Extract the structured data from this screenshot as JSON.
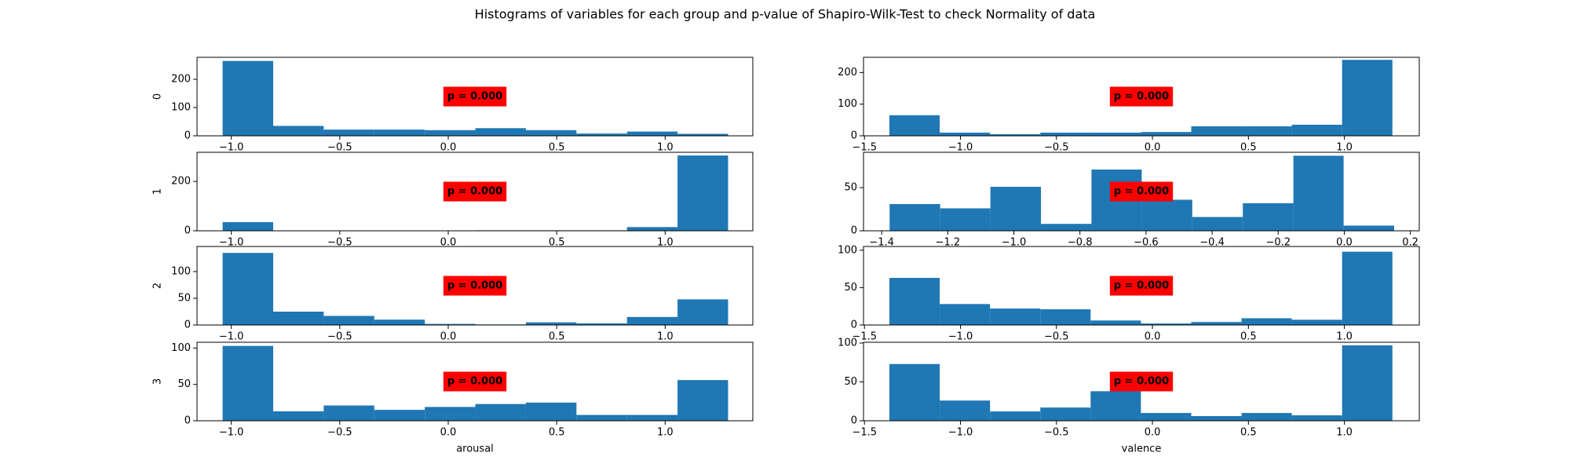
{
  "title": "Histograms of variables for each group and p-value of Shapiro-Wilk-Test to check Normality of data",
  "chart_data": [
    {
      "type": "histogram",
      "ylabel": "0",
      "annotation": "p = 0.000",
      "color": "#1f77b4",
      "bins": [
        -1.04,
        -0.807,
        -0.574,
        -0.341,
        -0.108,
        0.125,
        0.358,
        0.591,
        0.824,
        1.057,
        1.29
      ],
      "values": [
        265,
        35,
        22,
        22,
        20,
        27,
        20,
        8,
        15,
        7
      ],
      "xlim": [
        -1.158,
        1.404
      ],
      "ylim": [
        0,
        278
      ],
      "xticks": [
        {
          "value": -1,
          "label": "−1.0"
        },
        {
          "value": -0.5,
          "label": "−0.5"
        },
        {
          "value": 0,
          "label": "0.0"
        },
        0.5,
        {
          "value": 1,
          "label": "1.0"
        }
      ],
      "yticks": [
        0,
        100,
        200
      ]
    },
    {
      "type": "histogram",
      "annotation": "p = 0.000",
      "color": "#1f77b4",
      "bins": [
        -1.37,
        -1.108,
        -0.846,
        -0.584,
        -0.322,
        -0.06,
        0.202,
        0.464,
        0.726,
        0.988,
        1.25
      ],
      "values": [
        65,
        10,
        5,
        10,
        10,
        12,
        30,
        30,
        35,
        240
      ],
      "xlim": [
        -1.505,
        1.39
      ],
      "ylim": [
        0,
        248
      ],
      "xticks": [
        {
          "value": -1.5,
          "label": "−1.5"
        },
        {
          "value": -1,
          "label": "−1.0"
        },
        {
          "value": -0.5,
          "label": "−0.5"
        },
        {
          "value": 0,
          "label": "0.0"
        },
        0.5,
        {
          "value": 1,
          "label": "1.0"
        }
      ],
      "yticks": [
        0,
        100,
        200
      ]
    },
    {
      "type": "histogram",
      "ylabel": "1",
      "annotation": "p = 0.000",
      "color": "#1f77b4",
      "bins": [
        -1.04,
        -0.807,
        -0.574,
        -0.341,
        -0.108,
        0.125,
        0.358,
        0.591,
        0.824,
        1.057,
        1.29
      ],
      "values": [
        35,
        0,
        0,
        0,
        0,
        2,
        2,
        2,
        15,
        305
      ],
      "xlim": [
        -1.158,
        1.404
      ],
      "ylim": [
        0,
        318
      ],
      "xticks": [
        {
          "value": -1,
          "label": "−1.0"
        },
        {
          "value": -0.5,
          "label": "−0.5"
        },
        {
          "value": 0,
          "label": "0.0"
        },
        0.5,
        {
          "value": 1,
          "label": "1.0"
        }
      ],
      "yticks": [
        0,
        200
      ]
    },
    {
      "type": "histogram",
      "annotation": "p = 0.000",
      "color": "#1f77b4",
      "bins": [
        -1.376,
        -1.223,
        -1.071,
        -0.918,
        -0.765,
        -0.613,
        -0.46,
        -0.307,
        -0.154,
        -0.002,
        0.151
      ],
      "values": [
        31,
        26,
        51,
        8,
        71,
        36,
        16,
        32,
        87,
        6
      ],
      "xlim": [
        -1.455,
        0.227
      ],
      "ylim": [
        0,
        91
      ],
      "xticks": [
        {
          "value": -1.4,
          "label": "−1.4"
        },
        {
          "value": -1.2,
          "label": "−1.2"
        },
        {
          "value": -1,
          "label": "−1.0"
        },
        {
          "value": -0.8,
          "label": "−0.8"
        },
        {
          "value": -0.6,
          "label": "−0.6"
        },
        {
          "value": -0.4,
          "label": "−0.4"
        },
        {
          "value": -0.2,
          "label": "−0.2"
        },
        {
          "value": 0,
          "label": "0.0"
        },
        0.2
      ],
      "yticks": [
        0,
        50
      ]
    },
    {
      "type": "histogram",
      "ylabel": "2",
      "annotation": "p = 0.000",
      "color": "#1f77b4",
      "bins": [
        -1.04,
        -0.807,
        -0.574,
        -0.341,
        -0.108,
        0.125,
        0.358,
        0.591,
        0.824,
        1.057,
        1.29
      ],
      "values": [
        135,
        25,
        17,
        10,
        2,
        1,
        5,
        3,
        15,
        48
      ],
      "xlim": [
        -1.158,
        1.404
      ],
      "ylim": [
        0,
        147
      ],
      "xticks": [
        {
          "value": -1,
          "label": "−1.0"
        },
        {
          "value": -0.5,
          "label": "−0.5"
        },
        {
          "value": 0,
          "label": "0.0"
        },
        0.5,
        {
          "value": 1,
          "label": "1.0"
        }
      ],
      "yticks": [
        0,
        50,
        100
      ]
    },
    {
      "type": "histogram",
      "annotation": "p = 0.000",
      "color": "#1f77b4",
      "bins": [
        -1.37,
        -1.108,
        -0.846,
        -0.584,
        -0.322,
        -0.06,
        0.202,
        0.464,
        0.726,
        0.988,
        1.25
      ],
      "values": [
        63,
        28,
        22,
        21,
        6,
        2,
        4,
        9,
        7,
        98
      ],
      "xlim": [
        -1.505,
        1.39
      ],
      "ylim": [
        0,
        105
      ],
      "xticks": [
        {
          "value": -1.5,
          "label": "−1.5"
        },
        {
          "value": -1,
          "label": "−1.0"
        },
        {
          "value": -0.5,
          "label": "−0.5"
        },
        {
          "value": 0,
          "label": "0.0"
        },
        0.5,
        {
          "value": 1,
          "label": "1.0"
        }
      ],
      "yticks": [
        0,
        50,
        100
      ]
    },
    {
      "type": "histogram",
      "ylabel": "3",
      "xlabel": "arousal",
      "annotation": "p = 0.000",
      "color": "#1f77b4",
      "bins": [
        -1.04,
        -0.807,
        -0.574,
        -0.341,
        -0.108,
        0.125,
        0.358,
        0.591,
        0.824,
        1.057,
        1.29
      ],
      "values": [
        103,
        13,
        21,
        15,
        19,
        23,
        25,
        8,
        8,
        56
      ],
      "xlim": [
        -1.158,
        1.404
      ],
      "ylim": [
        0,
        108
      ],
      "xticks": [
        {
          "value": -1,
          "label": "−1.0"
        },
        {
          "value": -0.5,
          "label": "−0.5"
        },
        {
          "value": 0,
          "label": "0.0"
        },
        0.5,
        {
          "value": 1,
          "label": "1.0"
        }
      ],
      "yticks": [
        0,
        50,
        100
      ]
    },
    {
      "type": "histogram",
      "xlabel": "valence",
      "annotation": "p = 0.000",
      "color": "#1f77b4",
      "bins": [
        -1.37,
        -1.108,
        -0.846,
        -0.584,
        -0.322,
        -0.06,
        0.202,
        0.464,
        0.726,
        0.988,
        1.25
      ],
      "values": [
        73,
        26,
        12,
        17,
        38,
        10,
        6,
        10,
        7,
        97
      ],
      "xlim": [
        -1.505,
        1.39
      ],
      "ylim": [
        0,
        101
      ],
      "xticks": [
        {
          "value": -1.5,
          "label": "−1.5"
        },
        {
          "value": -1,
          "label": "−1.0"
        },
        {
          "value": -0.5,
          "label": "−0.5"
        },
        {
          "value": 0,
          "label": "0.0"
        },
        0.5,
        {
          "value": 1,
          "label": "1.0"
        }
      ],
      "yticks": [
        0,
        50,
        100
      ]
    }
  ]
}
